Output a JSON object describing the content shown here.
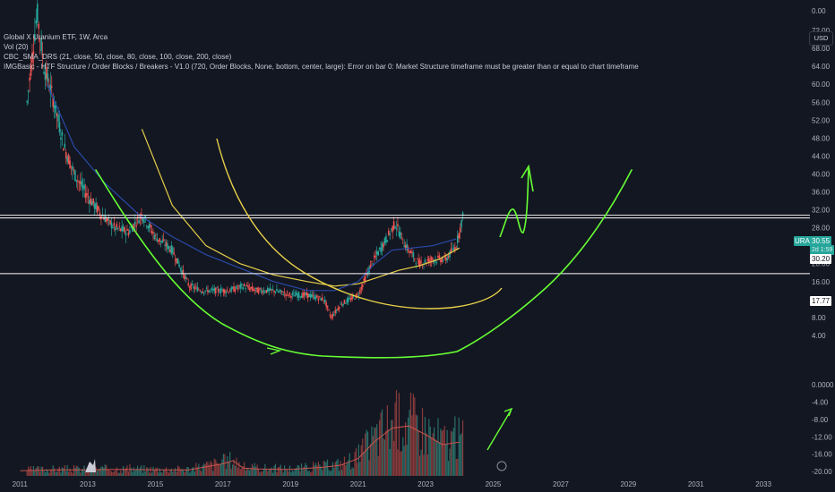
{
  "header": {
    "symbol_line": "Global X Uranium ETF, 1W, Arca",
    "vol_line": "Vol (20)",
    "sma_line": "CBC_SMA_DRS (21, close, 50, close, 80, close, 100, close, 200, close)",
    "img_line": "IMGBasic - HTF Structure / Order Blocks / Breakers - V1.0 (720, Order Blocks, None, bottom, center, large): Error on bar 0: Market Structure timeframe must be greater than or equal to chart timeframe"
  },
  "currency_button": "USD",
  "price_badges": {
    "ura_label": "URA",
    "ura_price": "30.55",
    "ura_countdown": "2d 1:59",
    "line_upper": "30.20",
    "line_lower": "17.77"
  },
  "colors": {
    "background": "#131722",
    "green_drawing": "#66ff33",
    "sma_yellow": "#e8d049",
    "sma_blue": "#2a4aa8",
    "vol_line": "#c9554e",
    "hline": "#ffffff",
    "up": "#26a69a",
    "down": "#ef5350"
  },
  "chart_data": [
    {
      "type": "line",
      "title": "Global X Uranium ETF, 1W, Arca",
      "y_axis_ticks": [
        "0.00",
        "72.00",
        "68.00",
        "64.00",
        "60.00",
        "56.00",
        "52.00",
        "48.00",
        "44.00",
        "40.00",
        "36.00",
        "32.00",
        "28.00",
        "24.00",
        "20.00",
        "16.00",
        "12.00",
        "8.00",
        "4.00"
      ],
      "x_axis_ticks": [
        "2011",
        "2013",
        "2015",
        "2017",
        "2019",
        "2021",
        "2023",
        "2025",
        "2027",
        "2029",
        "2031",
        "2033"
      ],
      "series": [
        {
          "x": [
            2011.2,
            2011.5,
            2011.7,
            2012.0,
            2012.3,
            2012.6,
            2013.0,
            2013.4,
            2013.8,
            2014.2,
            2014.6,
            2015.0,
            2015.5,
            2016.0,
            2016.4,
            2016.8,
            2017.2,
            2017.6,
            2018.0,
            2018.5,
            2019.0,
            2019.5,
            2020.0,
            2020.2,
            2020.5,
            2021.0,
            2021.4,
            2021.8,
            2022.1,
            2022.4,
            2022.8,
            2023.2,
            2023.6,
            2023.9,
            2024.1
          ],
          "values": [
            56,
            76,
            64,
            56,
            46,
            40,
            35,
            31,
            28,
            27,
            31,
            26,
            23,
            15,
            14,
            14,
            14,
            15,
            14,
            14,
            13,
            13,
            12,
            8,
            11,
            13,
            20,
            25,
            29,
            24,
            20,
            21,
            21,
            24,
            30.5
          ]
        }
      ],
      "sma_lines": [
        {
          "color": "yellow",
          "x": [
            2014.6,
            2015.5,
            2016.5,
            2017.5,
            2018.5,
            2019.5,
            2020.3,
            2021.0,
            2021.6,
            2022.2,
            2022.8,
            2023.4,
            2024.0
          ],
          "values": [
            50,
            33,
            24,
            20,
            17.5,
            16,
            15,
            15.5,
            17,
            18.5,
            19.5,
            21,
            23.5
          ]
        },
        {
          "color": "blue",
          "x": [
            2011.8,
            2012.6,
            2013.5,
            2014.5,
            2015.5,
            2016.5,
            2017.5,
            2018.5,
            2019.5,
            2020.3,
            2021.0,
            2021.5,
            2022.0,
            2022.6,
            2023.2,
            2023.9
          ],
          "values": [
            60,
            46,
            38,
            31,
            26,
            22,
            19,
            16,
            14,
            14,
            16,
            20,
            23,
            23.5,
            24,
            25.5
          ]
        }
      ],
      "horizontal_lines": [
        30.2,
        17.77
      ],
      "current_price": 30.55,
      "ylim": [
        -2,
        76
      ],
      "xlim": [
        2010.4,
        2034.0
      ],
      "grid": false,
      "legend": "top-left"
    },
    {
      "type": "bar",
      "title": "Vol (20)",
      "y_axis_ticks": [
        "0.0000",
        "-4.00",
        "-8.00",
        "-12.00",
        "-16.00",
        "-20.00"
      ],
      "x": [
        2011,
        2012,
        2013,
        2014,
        2015,
        2016,
        2017,
        2017.3,
        2017.6,
        2018,
        2019,
        2020,
        2020.5,
        2021,
        2021.5,
        2022,
        2022.5,
        2023,
        2023.5,
        2024
      ],
      "values": [
        -19.8,
        -19.6,
        -19.6,
        -19.5,
        -19.6,
        -19.6,
        -18.2,
        -17.5,
        -19.2,
        -19.4,
        -19.5,
        -19,
        -18.5,
        -17,
        -13,
        -10,
        -9.5,
        -11.5,
        -13.8,
        -13.2
      ],
      "ylim": [
        -21,
        2.5
      ]
    }
  ]
}
